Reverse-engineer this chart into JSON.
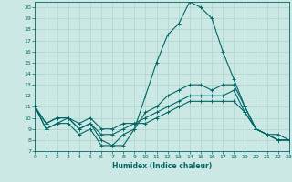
{
  "xlabel": "Humidex (Indice chaleur)",
  "background_color": "#cce8e4",
  "grid_color": "#aad4cc",
  "line_color": "#006666",
  "xlim": [
    0,
    23
  ],
  "ylim": [
    7,
    20.5
  ],
  "yticks": [
    7,
    8,
    9,
    10,
    11,
    12,
    13,
    14,
    15,
    16,
    17,
    18,
    19,
    20
  ],
  "xticks": [
    0,
    1,
    2,
    3,
    4,
    5,
    6,
    7,
    8,
    9,
    10,
    11,
    12,
    13,
    14,
    15,
    16,
    17,
    18,
    19,
    20,
    21,
    22,
    23
  ],
  "curves": [
    {
      "x": [
        0,
        1,
        2,
        3,
        4,
        5,
        6,
        7,
        8,
        9,
        10,
        11,
        12,
        13,
        14,
        15,
        16,
        17,
        18,
        19,
        20,
        21,
        22,
        23
      ],
      "y": [
        11,
        9,
        9.5,
        9.5,
        8.5,
        9,
        7.5,
        7.5,
        7.5,
        9,
        12,
        15,
        17.5,
        18.5,
        20.5,
        20,
        19,
        16,
        13.5,
        11,
        9,
        8.5,
        8,
        8
      ]
    },
    {
      "x": [
        0,
        1,
        2,
        3,
        4,
        5,
        6,
        7,
        8,
        9,
        10,
        11,
        12,
        13,
        14,
        15,
        16,
        17,
        18,
        19,
        20,
        21,
        22,
        23
      ],
      "y": [
        11,
        9,
        9.5,
        10,
        9,
        9.5,
        8,
        7.5,
        8.5,
        9,
        10.5,
        11,
        12,
        12.5,
        13,
        13,
        12.5,
        13,
        13,
        11,
        9,
        8.5,
        8.5,
        8
      ]
    },
    {
      "x": [
        0,
        1,
        2,
        3,
        4,
        5,
        6,
        7,
        8,
        9,
        10,
        11,
        12,
        13,
        14,
        15,
        16,
        17,
        18,
        19,
        20,
        21,
        22,
        23
      ],
      "y": [
        11,
        9.5,
        10,
        10,
        9,
        9.5,
        8.5,
        8.5,
        9,
        9.5,
        10,
        10.5,
        11,
        11.5,
        12,
        12,
        12,
        12,
        12.5,
        10.5,
        9,
        8.5,
        8,
        8
      ]
    },
    {
      "x": [
        0,
        1,
        2,
        3,
        4,
        5,
        6,
        7,
        8,
        9,
        10,
        11,
        12,
        13,
        14,
        15,
        16,
        17,
        18,
        19,
        20,
        21,
        22,
        23
      ],
      "y": [
        11,
        9.5,
        10,
        10,
        9.5,
        10,
        9,
        9,
        9.5,
        9.5,
        9.5,
        10,
        10.5,
        11,
        11.5,
        11.5,
        11.5,
        11.5,
        11.5,
        10.5,
        9,
        8.5,
        8,
        8
      ]
    }
  ]
}
